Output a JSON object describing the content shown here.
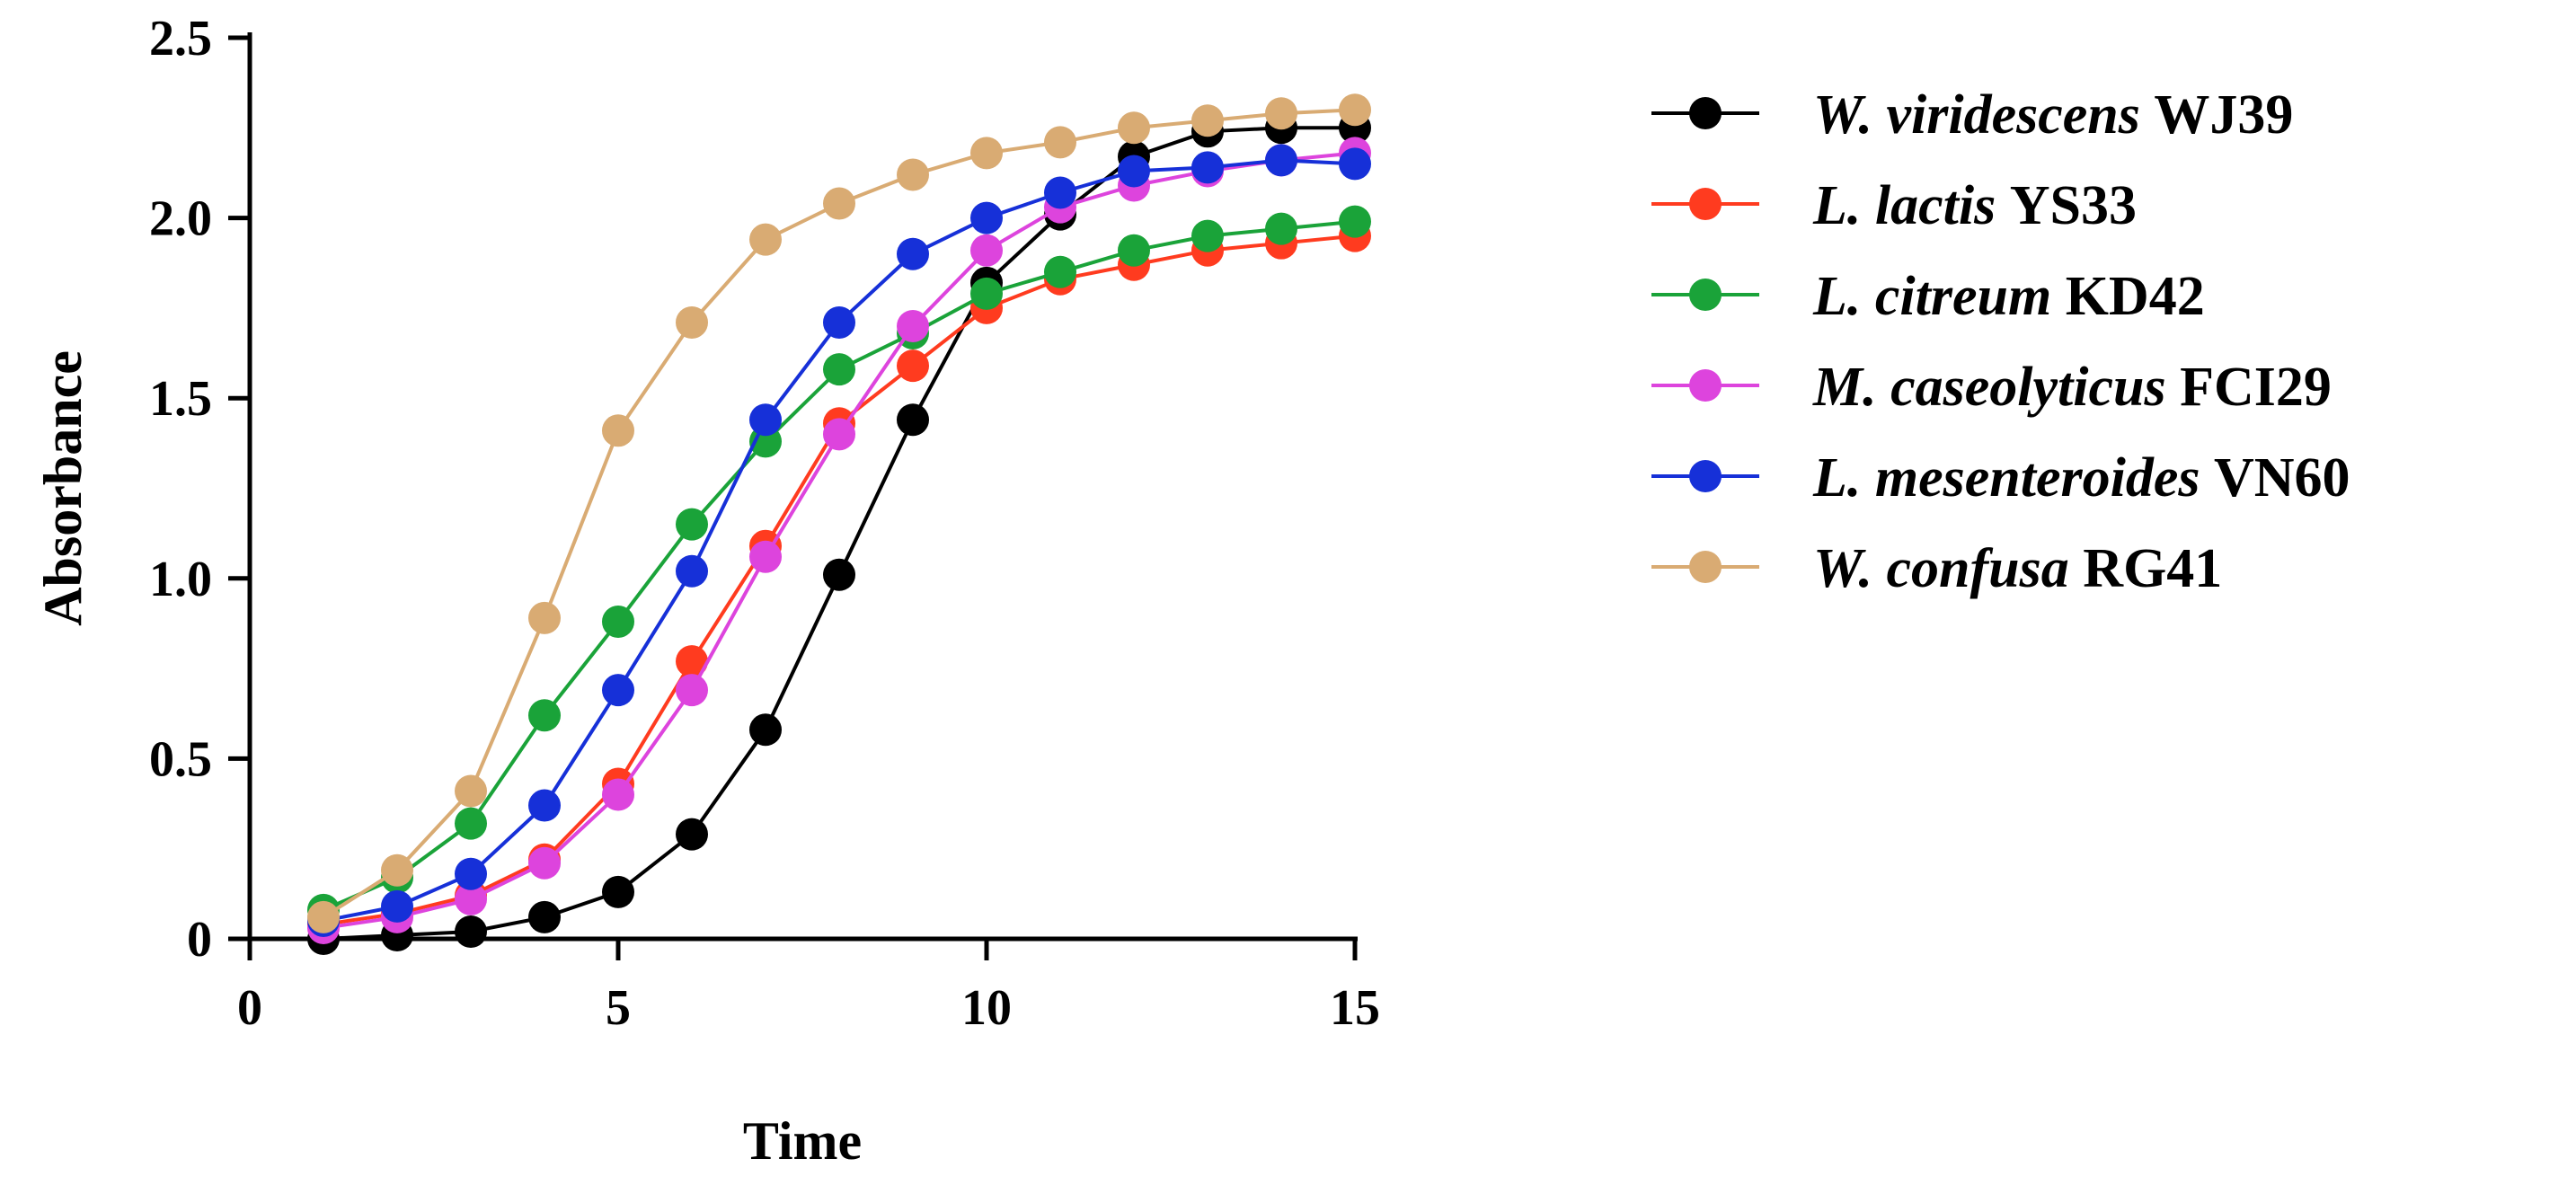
{
  "chart_data": {
    "type": "line",
    "title": "",
    "xlabel": "Time",
    "ylabel": "Absorbance",
    "xlim": [
      0,
      15
    ],
    "ylim": [
      0,
      2.5
    ],
    "xticks": [
      0,
      5,
      10,
      15
    ],
    "xtick_labels": [
      "0",
      "5",
      "10",
      "15"
    ],
    "yticks": [
      0,
      0.5,
      1.0,
      1.5,
      2.0,
      2.5
    ],
    "ytick_labels": [
      "0",
      "0.5",
      "1.0",
      "1.5",
      "2.0",
      "2.5"
    ],
    "grid": false,
    "legend_position": "right",
    "x": [
      1,
      2,
      3,
      4,
      5,
      6,
      7,
      8,
      9,
      10,
      11,
      12,
      13,
      14,
      15
    ],
    "series": [
      {
        "name": "W. viridescens WJ39",
        "genus": "W. viridescens",
        "strain": "WJ39",
        "color": "#000000",
        "values": [
          0.0,
          0.01,
          0.02,
          0.06,
          0.13,
          0.29,
          0.58,
          1.01,
          1.44,
          1.82,
          2.01,
          2.17,
          2.24,
          2.25,
          2.25
        ]
      },
      {
        "name": "L. lactis YS33",
        "genus": "L. lactis",
        "strain": "YS33",
        "color": "#ff3b1f",
        "values": [
          0.04,
          0.07,
          0.12,
          0.22,
          0.43,
          0.77,
          1.09,
          1.43,
          1.59,
          1.75,
          1.83,
          1.87,
          1.91,
          1.93,
          1.95
        ]
      },
      {
        "name": "L. citreum KD42",
        "genus": "L. citreum",
        "strain": "KD42",
        "color": "#1aa339",
        "values": [
          0.08,
          0.17,
          0.32,
          0.62,
          0.88,
          1.15,
          1.38,
          1.58,
          1.68,
          1.79,
          1.85,
          1.91,
          1.95,
          1.97,
          1.99
        ]
      },
      {
        "name": "M. caseolyticus FCI29",
        "genus": "M. caseolyticus",
        "strain": "FCI29",
        "color": "#dd44dd",
        "values": [
          0.03,
          0.06,
          0.11,
          0.21,
          0.4,
          0.69,
          1.06,
          1.4,
          1.7,
          1.91,
          2.03,
          2.09,
          2.13,
          2.16,
          2.18
        ]
      },
      {
        "name": "L. mesenteroides VN60",
        "genus": "L. mesenteroides",
        "strain": "VN60",
        "color": "#1630d8",
        "values": [
          0.05,
          0.09,
          0.18,
          0.37,
          0.69,
          1.02,
          1.44,
          1.71,
          1.9,
          2.0,
          2.07,
          2.13,
          2.14,
          2.16,
          2.15
        ]
      },
      {
        "name": "W. confusa RG41",
        "genus": "W. confusa",
        "strain": "RG41",
        "color": "#d9ab73",
        "values": [
          0.06,
          0.19,
          0.41,
          0.89,
          1.41,
          1.71,
          1.94,
          2.04,
          2.12,
          2.18,
          2.21,
          2.25,
          2.27,
          2.29,
          2.3
        ]
      }
    ]
  }
}
